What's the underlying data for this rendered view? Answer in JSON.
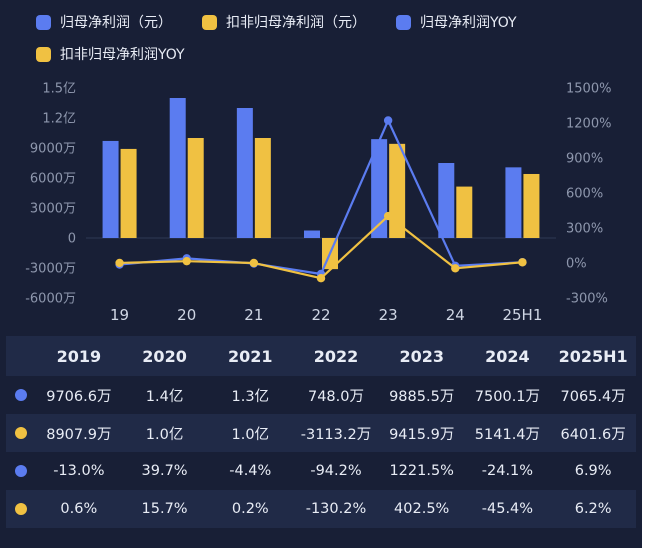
{
  "colors": {
    "blue": "#5b7cf0",
    "yellow": "#f0c142",
    "background": "#181f36",
    "row_shade": "#202a47",
    "axis_text": "#8e97ad",
    "x_text": "#cfd6e4",
    "zero_line": "#2e3854"
  },
  "legend": [
    {
      "label": "归母净利润（元）",
      "color": "blue"
    },
    {
      "label": "扣非归母净利润（元）",
      "color": "yellow"
    },
    {
      "label": "归母净利润YOY",
      "color": "blue"
    },
    {
      "label": "扣非归母净利润YOY",
      "color": "yellow"
    }
  ],
  "chart_data": {
    "type": "bar+line combo",
    "categories": [
      "19",
      "20",
      "21",
      "22",
      "23",
      "24",
      "25H1"
    ],
    "left_axis": {
      "label_unit": "元",
      "ticks": [
        "1.5亿",
        "1.2亿",
        "9000万",
        "6000万",
        "3000万",
        "0",
        "-3000万",
        "-6000万"
      ],
      "tick_values_wan": [
        15000,
        12000,
        9000,
        6000,
        3000,
        0,
        -3000,
        -6000
      ],
      "min_wan": -6000,
      "max_wan": 15000
    },
    "right_axis": {
      "label_unit": "%",
      "ticks": [
        "1500%",
        "1200%",
        "900%",
        "600%",
        "300%",
        "0%",
        "-300%"
      ],
      "tick_values_pct": [
        1500,
        1200,
        900,
        600,
        300,
        0,
        -300
      ],
      "min_pct": -300,
      "max_pct": 1500
    },
    "series": [
      {
        "name": "归母净利润",
        "kind": "bar",
        "color": "blue",
        "axis": "left",
        "values_wan": [
          9706.6,
          14000,
          13000,
          748.0,
          9885.5,
          7500.1,
          7065.4
        ]
      },
      {
        "name": "扣非归母净利润",
        "kind": "bar",
        "color": "yellow",
        "axis": "left",
        "values_wan": [
          8907.9,
          10000,
          10000,
          -3113.2,
          9415.9,
          5141.4,
          6401.6
        ]
      },
      {
        "name": "归母净利润YOY",
        "kind": "line",
        "color": "blue",
        "axis": "right",
        "values_pct": [
          -13.0,
          39.7,
          -4.4,
          -94.2,
          1221.5,
          -24.1,
          6.9
        ]
      },
      {
        "name": "扣非归母净利润YOY",
        "kind": "line",
        "color": "yellow",
        "axis": "right",
        "values_pct": [
          0.6,
          15.7,
          0.2,
          -130.2,
          402.5,
          -45.4,
          6.2
        ]
      }
    ],
    "grid": "zero-baseline only",
    "legend_position": "top-left"
  },
  "table": {
    "headers": [
      "2019",
      "2020",
      "2021",
      "2022",
      "2023",
      "2024",
      "2025H1"
    ],
    "rows": [
      {
        "dot": "blue",
        "name": "归母净利润",
        "cells": [
          "9706.6万",
          "1.4亿",
          "1.3亿",
          "748.0万",
          "9885.5万",
          "7500.1万",
          "7065.4万"
        ]
      },
      {
        "dot": "yellow",
        "name": "扣非归母净利润",
        "cells": [
          "8907.9万",
          "1.0亿",
          "1.0亿",
          "-3113.2万",
          "9415.9万",
          "5141.4万",
          "6401.6万"
        ]
      },
      {
        "dot": "blue",
        "name": "归母净利润YOY",
        "cells": [
          "-13.0%",
          "39.7%",
          "-4.4%",
          "-94.2%",
          "1221.5%",
          "-24.1%",
          "6.9%"
        ]
      },
      {
        "dot": "yellow",
        "name": "扣非归母净利润YOY",
        "cells": [
          "0.6%",
          "15.7%",
          "0.2%",
          "-130.2%",
          "402.5%",
          "-45.4%",
          "6.2%"
        ]
      }
    ]
  }
}
